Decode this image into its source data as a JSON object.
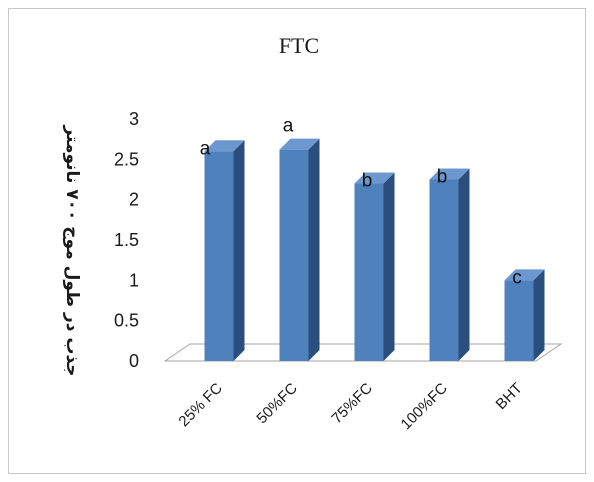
{
  "chart_data": {
    "type": "bar",
    "title": "FTC",
    "xlabel": "",
    "ylabel": "جذب در طول موج ۷۰۰ نانومتر",
    "categories": [
      "25% FC",
      "50%FC",
      "75%FC",
      "100%FC",
      "BHT"
    ],
    "values": [
      2.6,
      2.62,
      2.2,
      2.25,
      1.0
    ],
    "data_labels": [
      "a",
      "a",
      "b",
      "b",
      "c"
    ],
    "ylim": [
      0,
      3
    ],
    "yticks": [
      "0",
      "0.5",
      "1",
      "1.5",
      "2",
      "2.5",
      "3"
    ],
    "grid": false,
    "legend": "none",
    "colors": {
      "bar_front": "#4f81bd",
      "bar_side": "#2b4f7c",
      "bar_top": "#6d98cf",
      "floor": "#ffffff",
      "floor_stroke": "#a6a6a6"
    }
  }
}
